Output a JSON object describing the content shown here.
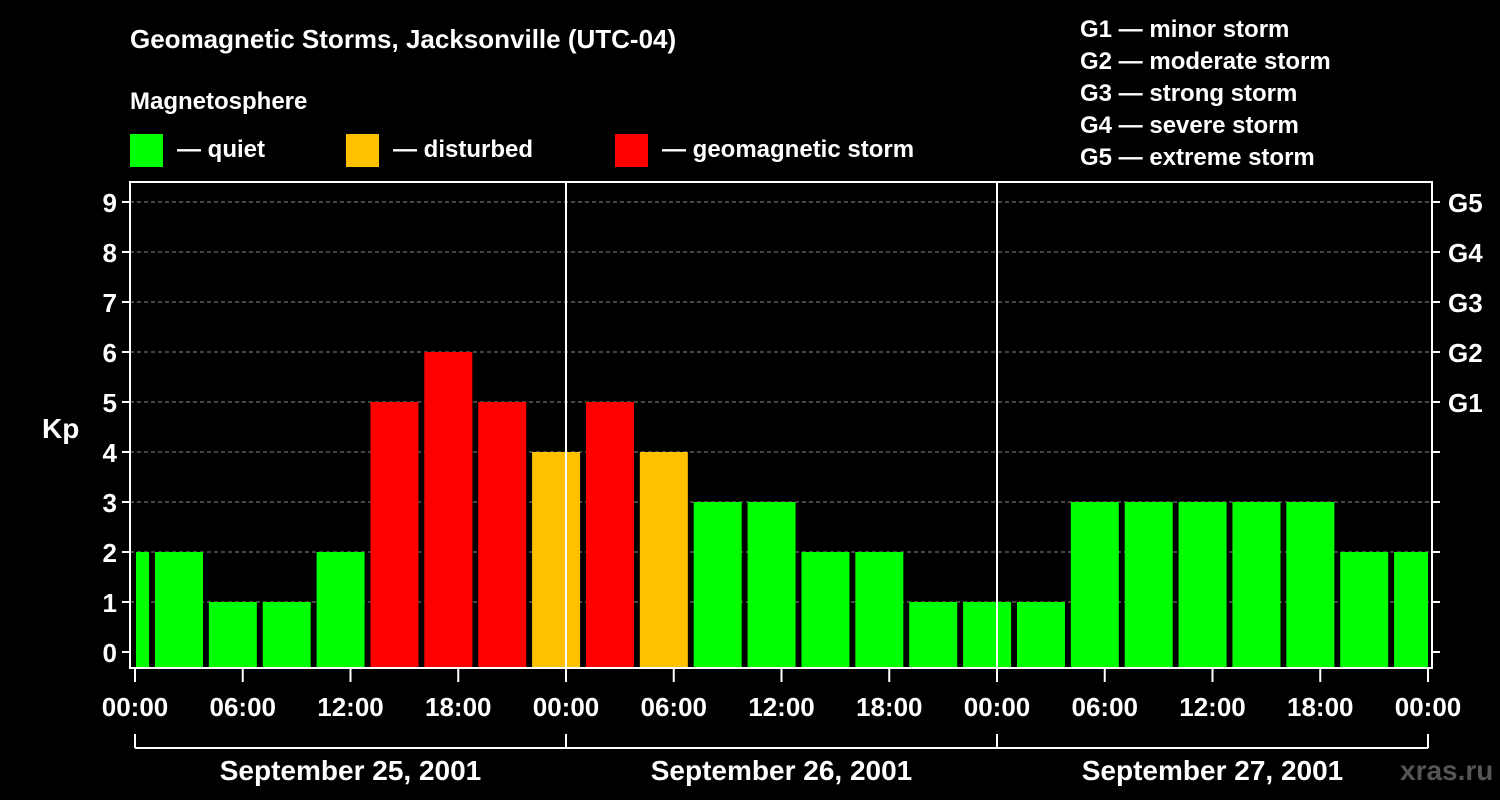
{
  "title": "Geomagnetic Storms, Jacksonville (UTC-04)",
  "watermark": "xras.ru",
  "legend": {
    "heading": "Magnetosphere",
    "items": [
      {
        "label": "— quiet",
        "color": "#00ff00"
      },
      {
        "label": "— disturbed",
        "color": "#ffc000"
      },
      {
        "label": "— geomagnetic storm",
        "color": "#ff0000"
      }
    ],
    "g_scale": [
      "G1 — minor storm",
      "G2 — moderate storm",
      "G3 — strong storm",
      "G4 — severe storm",
      "G5 — extreme storm"
    ]
  },
  "chart_data": {
    "type": "bar",
    "ylabel": "Kp",
    "ylim": [
      0,
      9
    ],
    "yticks": [
      "0",
      "1",
      "2",
      "3",
      "4",
      "5",
      "6",
      "7",
      "8",
      "9"
    ],
    "right_ticks": [
      {
        "kp": 5,
        "label": "G1"
      },
      {
        "kp": 6,
        "label": "G2"
      },
      {
        "kp": 7,
        "label": "G3"
      },
      {
        "kp": 8,
        "label": "G4"
      },
      {
        "kp": 9,
        "label": "G5"
      }
    ],
    "grid": "horizontal dashed",
    "x_range_hours": [
      0,
      72
    ],
    "xticks": [
      "00:00",
      "06:00",
      "12:00",
      "18:00",
      "00:00",
      "06:00",
      "12:00",
      "18:00",
      "00:00",
      "06:00",
      "12:00",
      "18:00",
      "00:00"
    ],
    "days": [
      "September 25, 2001",
      "September 26, 2001",
      "September 27, 2001"
    ],
    "bar_interval_hours": 3,
    "bar_start_hour": -2,
    "colors": {
      "quiet": "#00ff00",
      "disturbed": "#ffc000",
      "storm": "#ff0000"
    },
    "values": [
      2,
      2,
      1,
      1,
      2,
      5,
      6,
      5,
      4,
      5,
      4,
      3,
      3,
      2,
      2,
      1,
      1,
      1,
      3,
      3,
      3,
      3,
      3,
      2,
      2
    ]
  }
}
